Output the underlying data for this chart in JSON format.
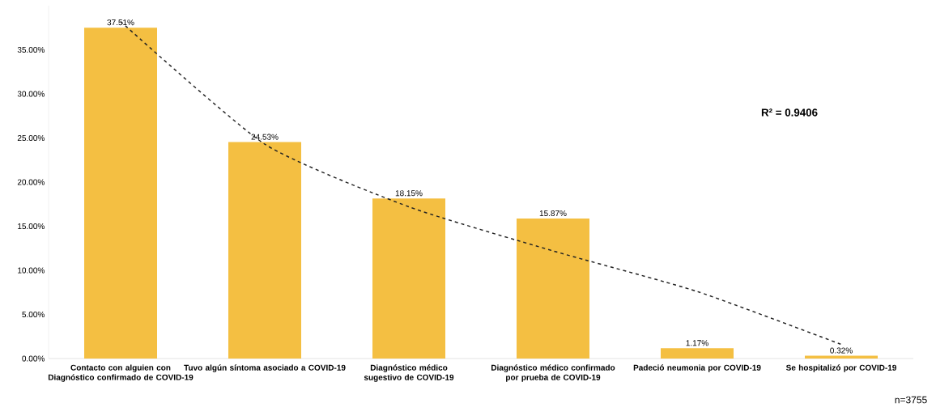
{
  "chart_data": {
    "type": "bar",
    "categories": [
      "Contacto con alguien con Diagnóstico confirmado de COVID-19",
      "Tuvo algún síntoma asociado a COVID-19",
      "Diagnóstico médico sugestivo de COVID-19",
      "Diagnóstico médico confirmado por prueba de COVID-19",
      "Padeció neumonia por COVID-19",
      "Se hospitalizó por COVID-19"
    ],
    "series": [
      {
        "type": "bar",
        "color": "#f4bf42",
        "values": [
          37.51,
          24.53,
          18.15,
          15.87,
          1.17,
          0.32
        ],
        "value_labels": [
          "37.51%",
          "24.53%",
          "18.15%",
          "15.87%",
          "1.17%",
          "0.32%"
        ]
      },
      {
        "type": "line",
        "color": "#222222",
        "line_style": "dashed",
        "values": [
          38.2,
          24.3,
          17.2,
          12.2,
          7.6,
          1.6
        ]
      }
    ],
    "ylim": [
      0,
      40
    ],
    "yticks": [
      {
        "value": 0,
        "label": "0.00%"
      },
      {
        "value": 5,
        "label": "5.00%"
      },
      {
        "value": 10,
        "label": "10.00%"
      },
      {
        "value": 15,
        "label": "15.00%"
      },
      {
        "value": 20,
        "label": "20.00%"
      },
      {
        "value": 25,
        "label": "25.00%"
      },
      {
        "value": 30,
        "label": "30.00%"
      },
      {
        "value": 35,
        "label": "35.00%"
      }
    ],
    "annotations": [
      "R² = 0.9406",
      "n=3755"
    ]
  }
}
